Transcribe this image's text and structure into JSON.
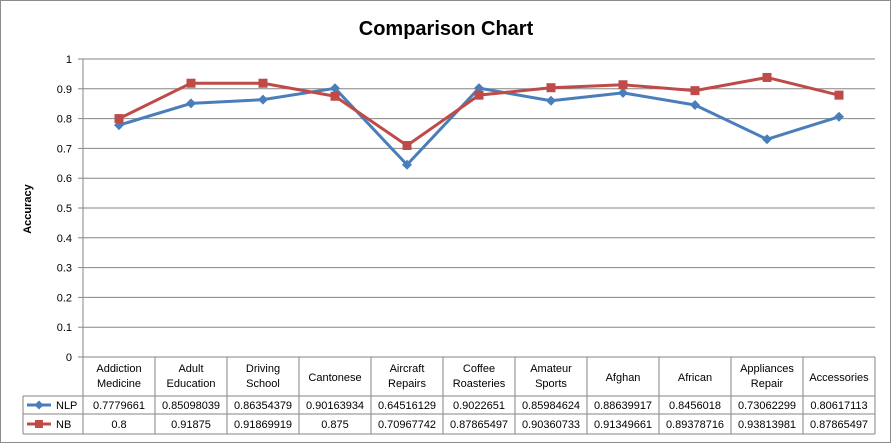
{
  "chart_data": {
    "type": "line",
    "title": "Comparison Chart",
    "ylabel": "Accuracy",
    "xlabel": "",
    "ylim": [
      0,
      1
    ],
    "yticks": [
      "0",
      "0.1",
      "0.2",
      "0.3",
      "0.4",
      "0.5",
      "0.6",
      "0.7",
      "0.8",
      "0.9",
      "1"
    ],
    "grid": true,
    "legend": "data-table",
    "categories": [
      [
        "Addiction",
        "Medicine"
      ],
      [
        "Adult",
        "Education"
      ],
      [
        "Driving",
        "School"
      ],
      [
        "Cantonese"
      ],
      [
        "Aircraft",
        "Repairs"
      ],
      [
        "Coffee",
        "Roasteries"
      ],
      [
        "Amateur",
        "Sports"
      ],
      [
        "Afghan"
      ],
      [
        "African"
      ],
      [
        "Appliances",
        "Repair"
      ],
      [
        "Accessories"
      ]
    ],
    "series": [
      {
        "name": "NLP",
        "color": "#4a7ebb",
        "marker": "diamond",
        "values": [
          0.7779661,
          0.85098039,
          0.86354379,
          0.90163934,
          0.64516129,
          0.9022651,
          0.85984624,
          0.88639917,
          0.8456018,
          0.73062299,
          0.80617113
        ],
        "labels": [
          "0.7779661",
          "0.85098039",
          "0.86354379",
          "0.90163934",
          "0.64516129",
          "0.9022651",
          "0.85984624",
          "0.88639917",
          "0.8456018",
          "0.73062299",
          "0.80617113"
        ]
      },
      {
        "name": "NB",
        "color": "#be4b48",
        "marker": "square",
        "values": [
          0.8,
          0.91875,
          0.91869919,
          0.875,
          0.70967742,
          0.87865497,
          0.90360733,
          0.91349661,
          0.89378716,
          0.93813981,
          0.87865497
        ],
        "labels": [
          "0.8",
          "0.91875",
          "0.91869919",
          "0.875",
          "0.70967742",
          "0.87865497",
          "0.90360733",
          "0.91349661",
          "0.89378716",
          "0.93813981",
          "0.87865497"
        ]
      }
    ]
  }
}
